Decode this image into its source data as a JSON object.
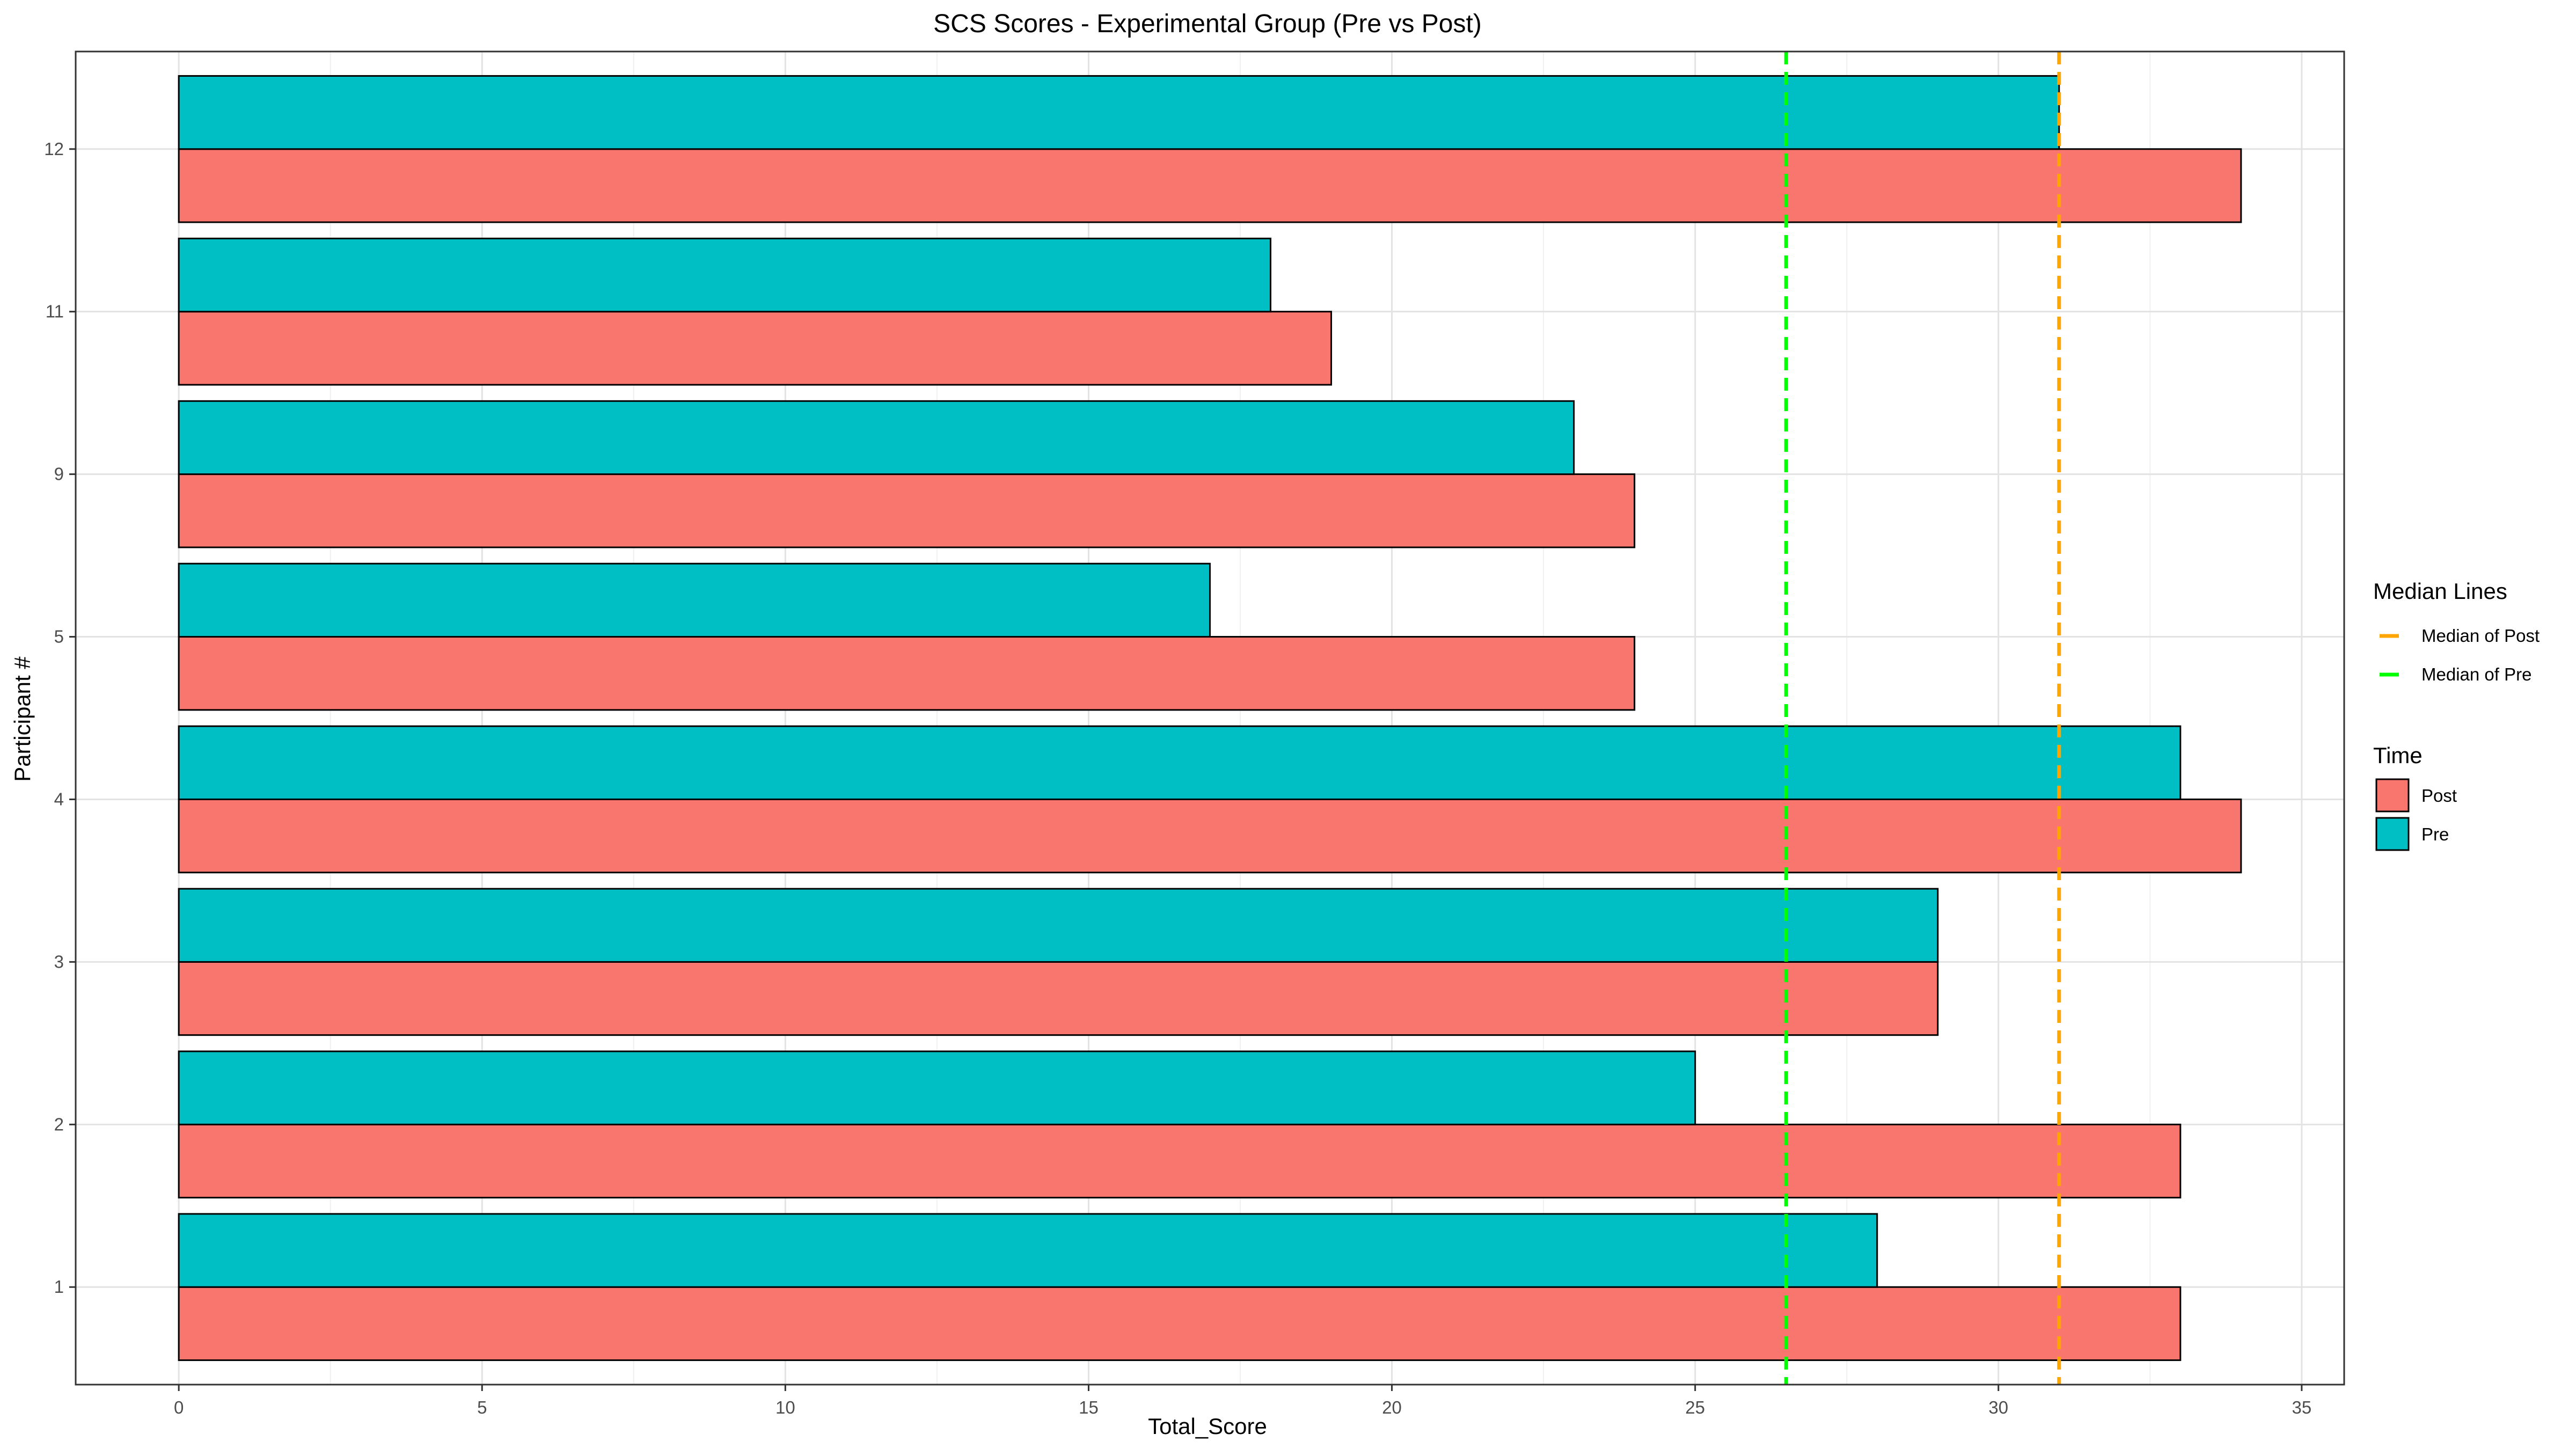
{
  "chart_data": {
    "type": "bar",
    "orientation": "horizontal",
    "title": "SCS  Scores - Experimental Group (Pre vs Post)",
    "xlabel": "Total_Score",
    "ylabel": "Participant #",
    "xlim": [
      -1.7,
      35.7
    ],
    "xticks": [
      0,
      5,
      10,
      15,
      20,
      25,
      30,
      35
    ],
    "grid": true,
    "categories": [
      "1",
      "2",
      "3",
      "4",
      "5",
      "9",
      "11",
      "12"
    ],
    "series": [
      {
        "name": "Post",
        "color": "#F8766D",
        "values": [
          33,
          33,
          29,
          34,
          24,
          24,
          19,
          34
        ]
      },
      {
        "name": "Pre",
        "color": "#00BFC4",
        "values": [
          28,
          25,
          29,
          33,
          17,
          23,
          18,
          31
        ]
      }
    ],
    "reference_lines": [
      {
        "name": "Median of Post",
        "value": 31,
        "color": "#FFA500",
        "style": "dashed"
      },
      {
        "name": "Median of Pre",
        "value": 26.5,
        "color": "#00FF00",
        "style": "dashed"
      }
    ],
    "legends": [
      {
        "title": "Median Lines",
        "items": [
          "Median of Post",
          "Median of Pre"
        ]
      },
      {
        "title": "Time",
        "items": [
          "Post",
          "Pre"
        ]
      }
    ],
    "legend_position": "right"
  }
}
